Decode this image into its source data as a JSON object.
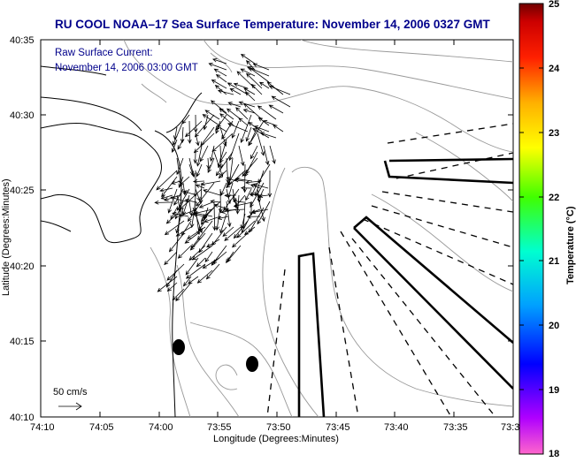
{
  "title": "RU COOL  NOAA–17  Sea Surface Temperature:  November 14, 2006 0327 GMT",
  "annotation": {
    "line1": "Raw Surface Current:",
    "line2": "November 14, 2006 03:00 GMT"
  },
  "scale_label": "50 cm/s",
  "x_axis": {
    "label": "Longitude (Degrees:Minutes)",
    "ticks": [
      "74:10",
      "74:05",
      "74:00",
      "73:55",
      "73:50",
      "73:45",
      "73:40",
      "73:35",
      "73:3"
    ]
  },
  "y_axis": {
    "label": "Latitude (Degrees:Minutes)",
    "ticks": [
      "40:35",
      "40:30",
      "40:25",
      "40:20",
      "40:15",
      "40:10"
    ]
  },
  "colorbar": {
    "label": "Temperature (°C)",
    "ticks": [
      "25",
      "24",
      "23",
      "22",
      "21",
      "20",
      "19",
      "18"
    ],
    "range": [
      18,
      25
    ],
    "colors": [
      "#ff66cc",
      "#8000ff",
      "#0000ff",
      "#00c0ff",
      "#00ffaa",
      "#66ff00",
      "#ffff00",
      "#ffb000",
      "#ff4000",
      "#ff0000",
      "#800000"
    ]
  },
  "map": {
    "background": "#ffffff",
    "coast_color": "#000000",
    "bathymetry_color": "#999999",
    "vector_color": "#000000"
  }
}
